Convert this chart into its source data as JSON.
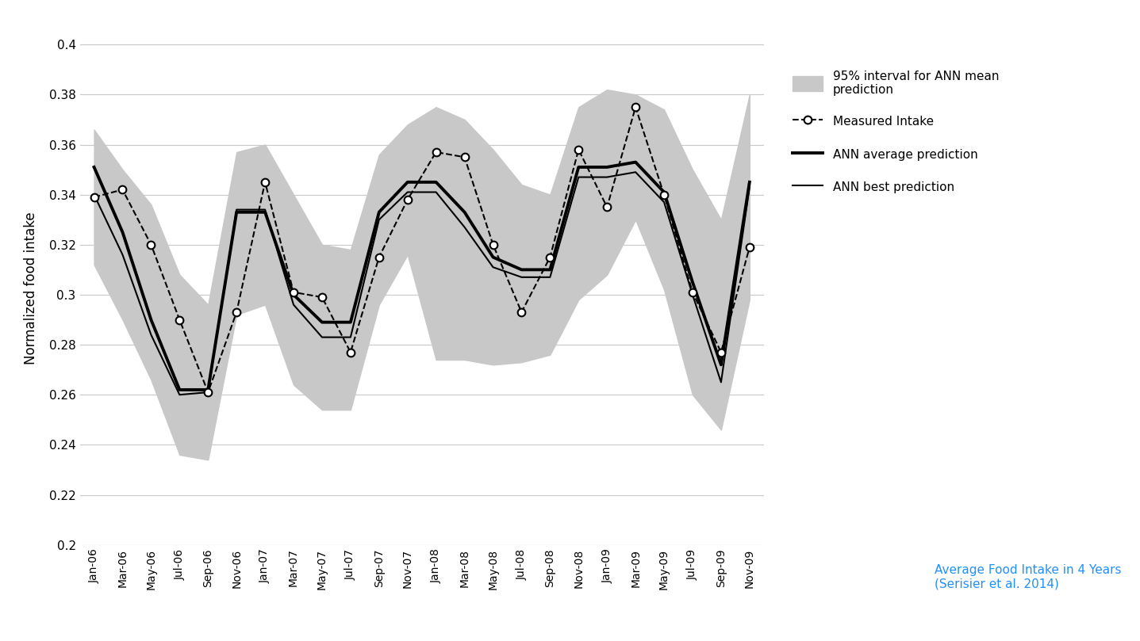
{
  "x_labels": [
    "Jan-06",
    "Mar-06",
    "May-06",
    "Jul-06",
    "Sep-06",
    "Nov-06",
    "Jan-07",
    "Mar-07",
    "May-07",
    "Jul-07",
    "Sep-07",
    "Nov-07",
    "Jan-08",
    "Mar-08",
    "May-08",
    "Jul-08",
    "Sep-08",
    "Nov-08",
    "Jan-09",
    "Mar-09",
    "May-09",
    "Jul-09",
    "Sep-09",
    "Nov-09"
  ],
  "measured_intake": [
    0.339,
    0.342,
    0.32,
    0.29,
    0.261,
    0.293,
    0.345,
    0.301,
    0.299,
    0.277,
    0.315,
    0.338,
    0.357,
    0.355,
    0.32,
    0.293,
    0.315,
    0.358,
    0.335,
    0.375,
    0.34,
    0.301,
    0.277,
    0.319
  ],
  "ann_avg_prediction": [
    0.351,
    0.325,
    0.29,
    0.262,
    0.262,
    0.333,
    0.333,
    0.3,
    0.289,
    0.289,
    0.333,
    0.345,
    0.345,
    0.333,
    0.315,
    0.31,
    0.31,
    0.351,
    0.351,
    0.353,
    0.341,
    0.305,
    0.272,
    0.345
  ],
  "ann_best_prediction": [
    0.34,
    0.316,
    0.284,
    0.26,
    0.261,
    0.334,
    0.334,
    0.296,
    0.283,
    0.283,
    0.33,
    0.341,
    0.341,
    0.327,
    0.311,
    0.307,
    0.307,
    0.347,
    0.347,
    0.349,
    0.337,
    0.3,
    0.265,
    0.343
  ],
  "ci_upper": [
    0.366,
    0.35,
    0.336,
    0.308,
    0.296,
    0.357,
    0.36,
    0.34,
    0.32,
    0.318,
    0.356,
    0.368,
    0.375,
    0.37,
    0.358,
    0.344,
    0.34,
    0.375,
    0.382,
    0.38,
    0.374,
    0.35,
    0.33,
    0.38
  ],
  "ci_lower": [
    0.312,
    0.29,
    0.266,
    0.236,
    0.234,
    0.292,
    0.296,
    0.264,
    0.254,
    0.254,
    0.296,
    0.316,
    0.274,
    0.274,
    0.272,
    0.273,
    0.276,
    0.298,
    0.308,
    0.33,
    0.302,
    0.26,
    0.246,
    0.298
  ],
  "background_color": "#ffffff",
  "grid_color": "#c8c8c8",
  "fill_color": "#c8c8c8",
  "line_color": "#000000",
  "ylabel": "Normalized food intake",
  "ylim": [
    0.2,
    0.405
  ],
  "yticks": [
    0.2,
    0.22,
    0.24,
    0.26,
    0.28,
    0.3,
    0.32,
    0.34,
    0.36,
    0.38,
    0.4
  ],
  "ytick_labels": [
    "0.2",
    "0.22",
    "0.24",
    "0.26",
    "0.28",
    "0.3",
    "0.32",
    "0.34",
    "0.36",
    "0.38",
    "0.4"
  ],
  "legend_ci": "95% interval for ANN mean\nprediction",
  "legend_measured": "Measured Intake",
  "legend_avg": "ANN average prediction",
  "legend_best": "ANN best prediction",
  "source_text": "Average Food Intake in 4 Years\n(Serisier et al. 2014)",
  "source_color": "#1E90FF"
}
